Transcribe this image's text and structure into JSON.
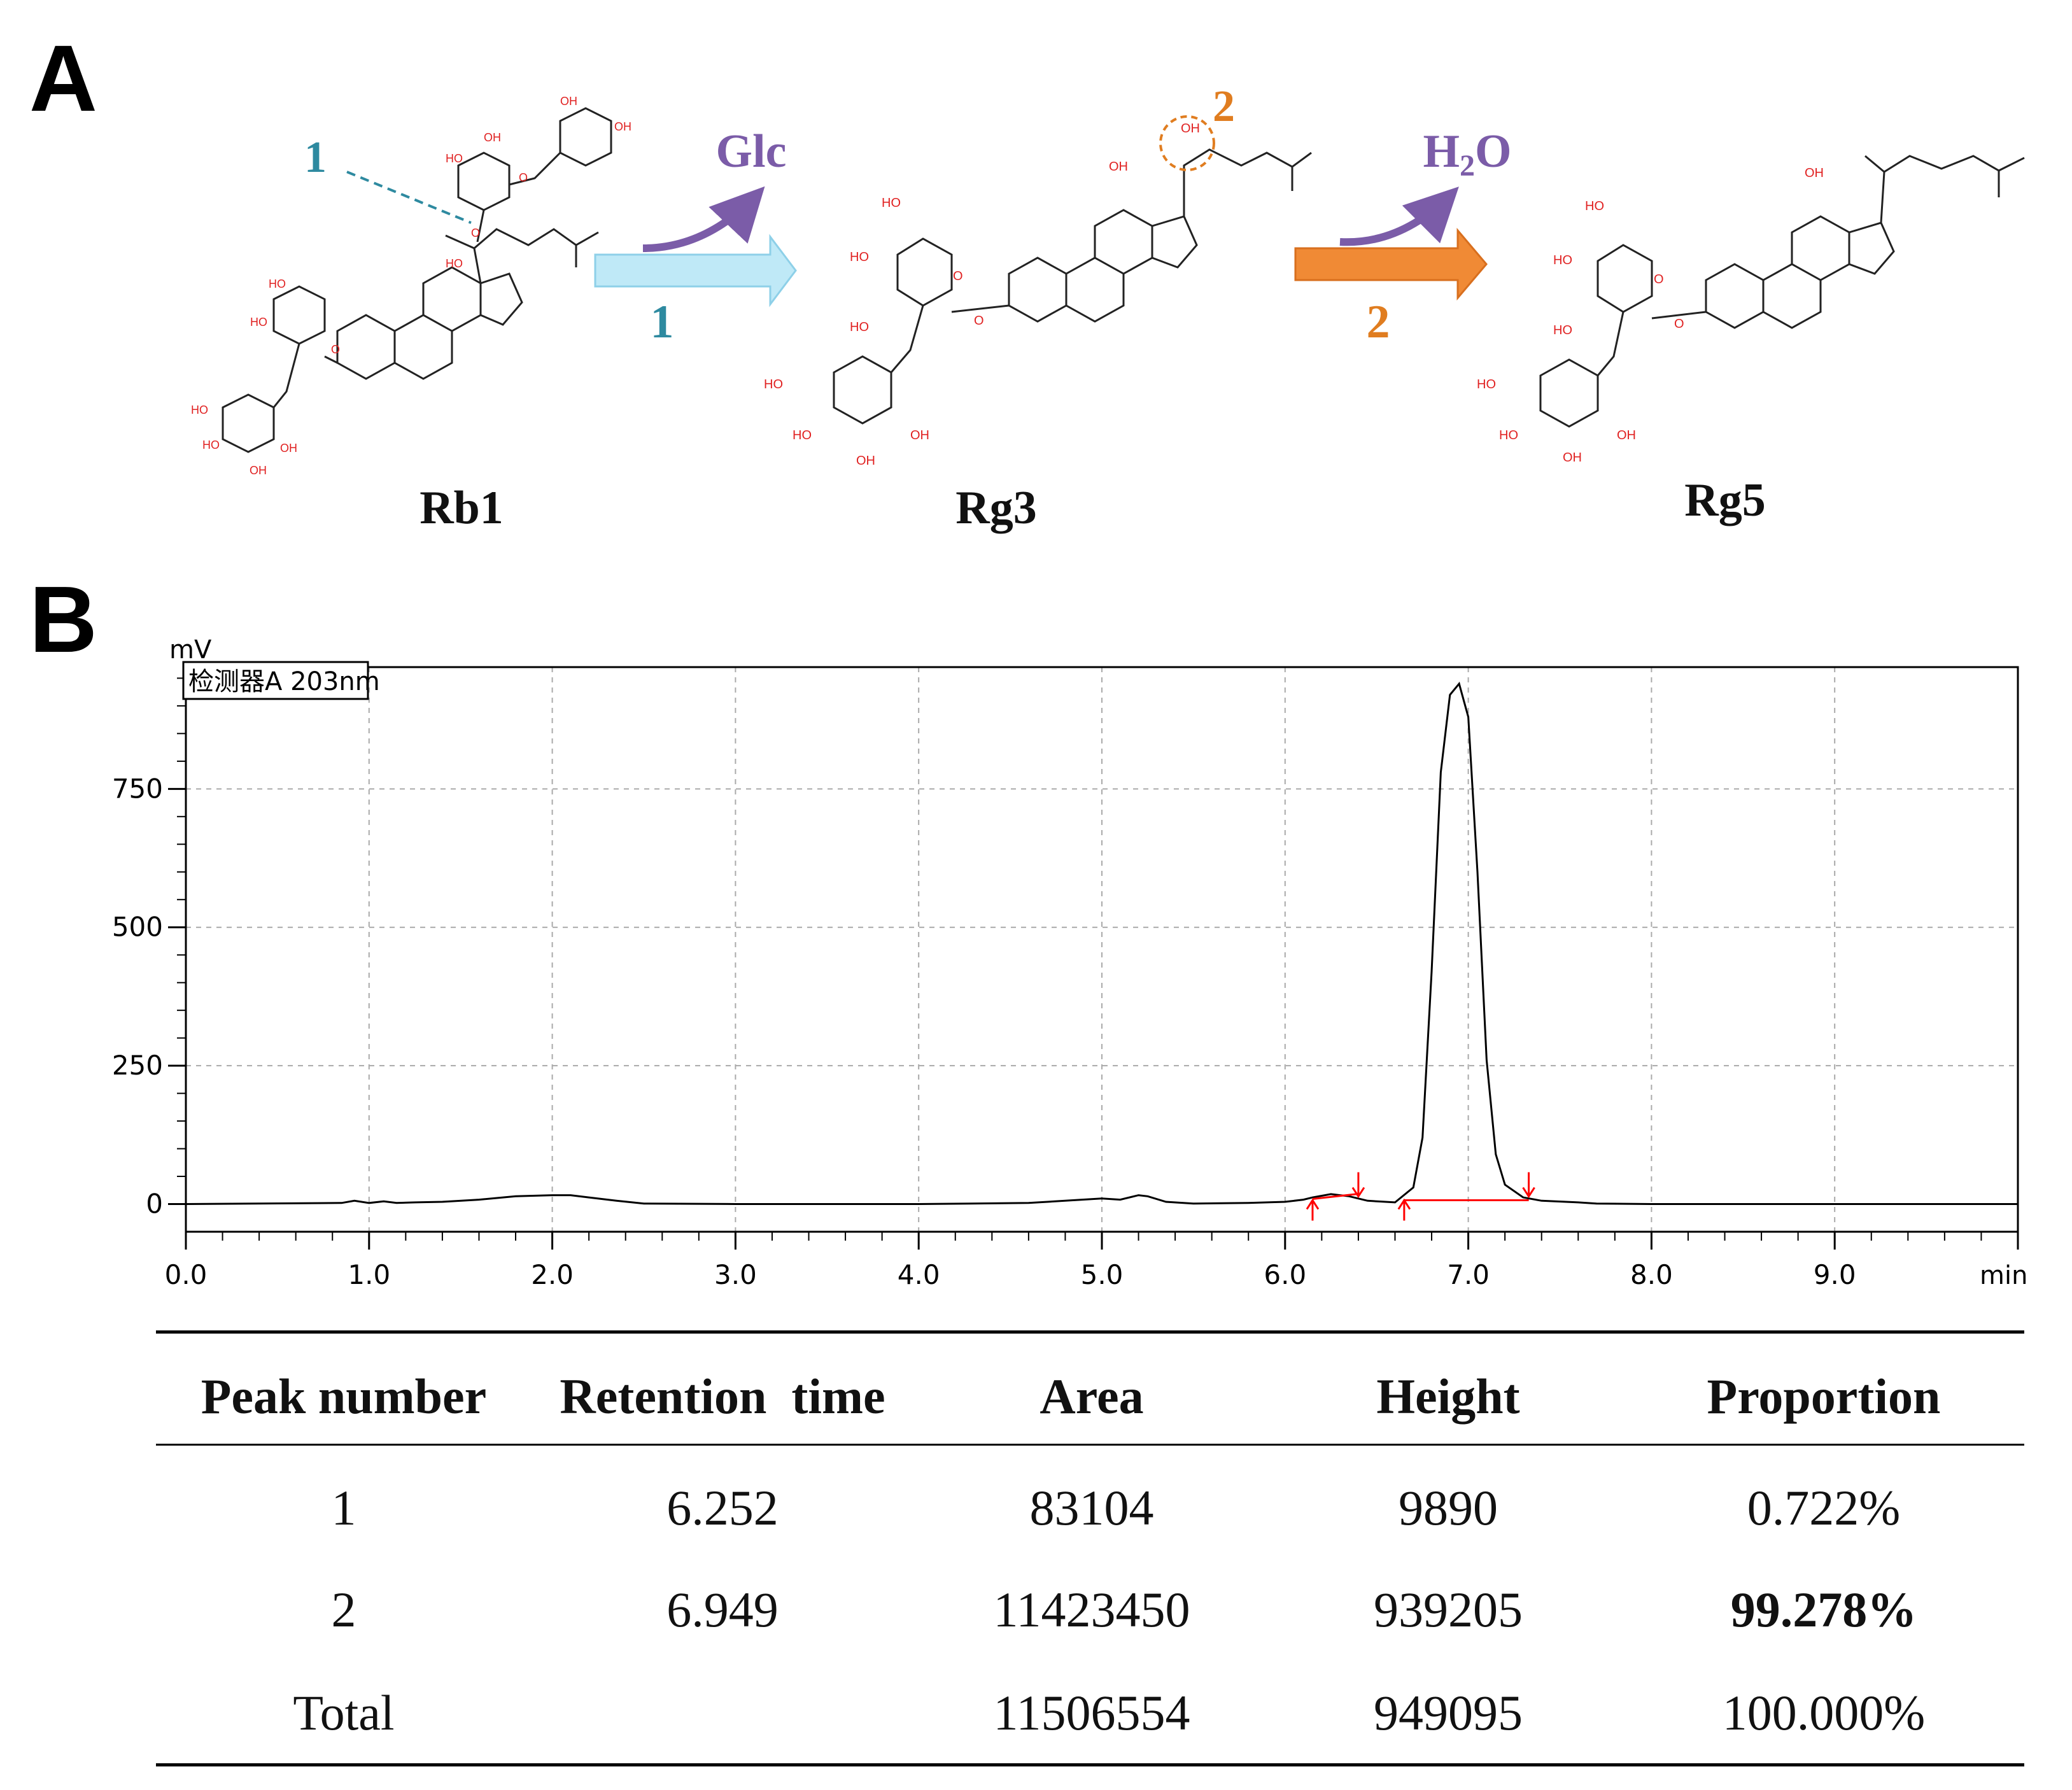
{
  "panels": {
    "a_label": "A",
    "b_label": "B"
  },
  "scheme": {
    "compounds": [
      {
        "name": "Rb1"
      },
      {
        "name": "Rg3"
      },
      {
        "name": "Rg5"
      }
    ],
    "reactions": [
      {
        "step": "1",
        "byproduct": "Glc",
        "arrow_color": "#BFE9F7"
      },
      {
        "step": "2",
        "byproduct": "H2O",
        "arrow_color": "#F08A35"
      }
    ],
    "site_markers": [
      "1",
      "2"
    ],
    "colors": {
      "step1": "#2E8AA0",
      "step2": "#E07D20",
      "byproduct": "#7B5CA8",
      "oxygen": "#E02020"
    }
  },
  "chart_data": {
    "type": "line",
    "detector_label": "检测器A 203nm",
    "ylabel": "mV",
    "xlabel": "min",
    "xlim": [
      0.0,
      10.0
    ],
    "ylim": [
      -50,
      970
    ],
    "x_ticks": [
      "0.0",
      "1.0",
      "2.0",
      "3.0",
      "4.0",
      "5.0",
      "6.0",
      "7.0",
      "8.0",
      "9.0"
    ],
    "y_ticks": [
      "0",
      "250",
      "500",
      "750"
    ],
    "grid": true,
    "series": [
      {
        "x": [
          0.0,
          0.85,
          0.92,
          1.0,
          1.08,
          1.15,
          1.25,
          1.4,
          1.6,
          1.8,
          2.0,
          2.1,
          2.2,
          2.35,
          2.5,
          3.0,
          4.0,
          4.6,
          4.8,
          5.0,
          5.1,
          5.2,
          5.25,
          5.35,
          5.5,
          5.8,
          6.0,
          6.1,
          6.15,
          6.25,
          6.35,
          6.45,
          6.6,
          6.7,
          6.75,
          6.8,
          6.85,
          6.9,
          6.95,
          7.0,
          7.05,
          7.1,
          7.15,
          7.2,
          7.3,
          7.4,
          7.6,
          7.7,
          8.0,
          9.0,
          10.0
        ],
        "y": [
          0,
          2,
          6,
          2,
          5,
          2,
          3,
          4,
          8,
          14,
          16,
          16,
          12,
          6,
          1,
          0,
          0,
          2,
          6,
          10,
          8,
          16,
          14,
          4,
          1,
          2,
          4,
          8,
          12,
          18,
          14,
          6,
          3,
          30,
          120,
          420,
          780,
          920,
          940,
          880,
          600,
          260,
          90,
          35,
          12,
          6,
          3,
          1,
          0,
          0,
          0
        ]
      }
    ],
    "integration_markers": [
      6.15,
      6.4,
      6.65,
      7.33
    ],
    "marker_color": "#FF0000"
  },
  "table": {
    "headers": [
      "Peak number",
      "Retention  time",
      "Area",
      "Height",
      "Proportion"
    ],
    "rows": [
      [
        "1",
        "6.252",
        "83104",
        "9890",
        "0.722%"
      ],
      [
        "2",
        "6.949",
        "11423450",
        "939205",
        "99.278%"
      ],
      [
        "Total",
        "",
        "11506554",
        "949095",
        "100.000%"
      ]
    ]
  }
}
